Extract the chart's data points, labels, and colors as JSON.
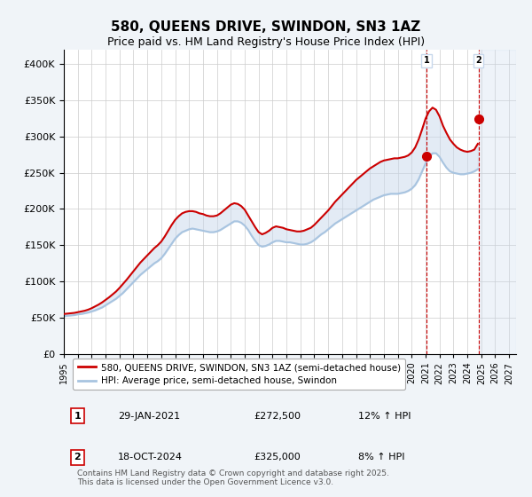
{
  "title": "580, QUEENS DRIVE, SWINDON, SN3 1AZ",
  "subtitle": "Price paid vs. HM Land Registry's House Price Index (HPI)",
  "ylabel_ticks": [
    "£0",
    "£50K",
    "£100K",
    "£150K",
    "£200K",
    "£250K",
    "£300K",
    "£350K",
    "£400K"
  ],
  "ytick_values": [
    0,
    50000,
    100000,
    150000,
    200000,
    250000,
    300000,
    350000,
    400000
  ],
  "ylim": [
    0,
    420000
  ],
  "xlim_start": 1995.0,
  "xlim_end": 2027.5,
  "hpi_color": "#a8c4e0",
  "price_color": "#cc0000",
  "marker1_date": 2021.08,
  "marker1_price": 272500,
  "marker1_label": "1",
  "marker2_date": 2024.8,
  "marker2_price": 325000,
  "marker2_label": "2",
  "annotation1_date": "29-JAN-2021",
  "annotation1_price": "£272,500",
  "annotation1_hpi": "12% ↑ HPI",
  "annotation2_date": "18-OCT-2024",
  "annotation2_price": "£325,000",
  "annotation2_hpi": "8% ↑ HPI",
  "legend_line1": "580, QUEENS DRIVE, SWINDON, SN3 1AZ (semi-detached house)",
  "legend_line2": "HPI: Average price, semi-detached house, Swindon",
  "footnote": "Contains HM Land Registry data © Crown copyright and database right 2025.\nThis data is licensed under the Open Government Licence v3.0.",
  "background_color": "#f0f4f8",
  "plot_bg_color": "#ffffff",
  "grid_color": "#cccccc",
  "xtick_years": [
    1995,
    1996,
    1997,
    1998,
    1999,
    2000,
    2001,
    2002,
    2003,
    2004,
    2005,
    2006,
    2007,
    2008,
    2009,
    2010,
    2011,
    2012,
    2013,
    2014,
    2015,
    2016,
    2017,
    2018,
    2019,
    2020,
    2021,
    2022,
    2023,
    2024,
    2025,
    2026,
    2027
  ],
  "hpi_x": [
    1995.0,
    1995.25,
    1995.5,
    1995.75,
    1996.0,
    1996.25,
    1996.5,
    1996.75,
    1997.0,
    1997.25,
    1997.5,
    1997.75,
    1998.0,
    1998.25,
    1998.5,
    1998.75,
    1999.0,
    1999.25,
    1999.5,
    1999.75,
    2000.0,
    2000.25,
    2000.5,
    2000.75,
    2001.0,
    2001.25,
    2001.5,
    2001.75,
    2002.0,
    2002.25,
    2002.5,
    2002.75,
    2003.0,
    2003.25,
    2003.5,
    2003.75,
    2004.0,
    2004.25,
    2004.5,
    2004.75,
    2005.0,
    2005.25,
    2005.5,
    2005.75,
    2006.0,
    2006.25,
    2006.5,
    2006.75,
    2007.0,
    2007.25,
    2007.5,
    2007.75,
    2008.0,
    2008.25,
    2008.5,
    2008.75,
    2009.0,
    2009.25,
    2009.5,
    2009.75,
    2010.0,
    2010.25,
    2010.5,
    2010.75,
    2011.0,
    2011.25,
    2011.5,
    2011.75,
    2012.0,
    2012.25,
    2012.5,
    2012.75,
    2013.0,
    2013.25,
    2013.5,
    2013.75,
    2014.0,
    2014.25,
    2014.5,
    2014.75,
    2015.0,
    2015.25,
    2015.5,
    2015.75,
    2016.0,
    2016.25,
    2016.5,
    2016.75,
    2017.0,
    2017.25,
    2017.5,
    2017.75,
    2018.0,
    2018.25,
    2018.5,
    2018.75,
    2019.0,
    2019.25,
    2019.5,
    2019.75,
    2020.0,
    2020.25,
    2020.5,
    2020.75,
    2021.0,
    2021.25,
    2021.5,
    2021.75,
    2022.0,
    2022.25,
    2022.5,
    2022.75,
    2023.0,
    2023.25,
    2023.5,
    2023.75,
    2024.0,
    2024.25,
    2024.5,
    2024.75
  ],
  "hpi_y": [
    52000,
    52500,
    53000,
    53500,
    54500,
    55000,
    56000,
    57000,
    58500,
    60000,
    62000,
    64000,
    67000,
    70000,
    73000,
    76000,
    80000,
    84000,
    89000,
    94000,
    99000,
    104000,
    109000,
    113000,
    117000,
    121000,
    125000,
    128000,
    132000,
    138000,
    145000,
    152000,
    159000,
    164000,
    168000,
    170000,
    172000,
    173000,
    172000,
    171000,
    170000,
    169000,
    168000,
    168000,
    169000,
    171000,
    174000,
    177000,
    180000,
    183000,
    183000,
    181000,
    177000,
    171000,
    163000,
    156000,
    150000,
    148000,
    149000,
    151000,
    154000,
    156000,
    156000,
    155000,
    154000,
    154000,
    153000,
    152000,
    151000,
    151000,
    152000,
    154000,
    157000,
    161000,
    165000,
    168000,
    172000,
    176000,
    180000,
    183000,
    186000,
    189000,
    192000,
    195000,
    198000,
    201000,
    204000,
    207000,
    210000,
    213000,
    215000,
    217000,
    219000,
    220000,
    221000,
    221000,
    221000,
    222000,
    223000,
    225000,
    228000,
    233000,
    241000,
    252000,
    263000,
    272000,
    277000,
    277000,
    272000,
    264000,
    257000,
    252000,
    250000,
    249000,
    248000,
    248000,
    249000,
    250000,
    252000,
    255000
  ],
  "price_x": [
    1995.0,
    1995.25,
    1995.5,
    1995.75,
    1996.0,
    1996.25,
    1996.5,
    1996.75,
    1997.0,
    1997.25,
    1997.5,
    1997.75,
    1998.0,
    1998.25,
    1998.5,
    1998.75,
    1999.0,
    1999.25,
    1999.5,
    1999.75,
    2000.0,
    2000.25,
    2000.5,
    2000.75,
    2001.0,
    2001.25,
    2001.5,
    2001.75,
    2002.0,
    2002.25,
    2002.5,
    2002.75,
    2003.0,
    2003.25,
    2003.5,
    2003.75,
    2004.0,
    2004.25,
    2004.5,
    2004.75,
    2005.0,
    2005.25,
    2005.5,
    2005.75,
    2006.0,
    2006.25,
    2006.5,
    2006.75,
    2007.0,
    2007.25,
    2007.5,
    2007.75,
    2008.0,
    2008.25,
    2008.5,
    2008.75,
    2009.0,
    2009.25,
    2009.5,
    2009.75,
    2010.0,
    2010.25,
    2010.5,
    2010.75,
    2011.0,
    2011.25,
    2011.5,
    2011.75,
    2012.0,
    2012.25,
    2012.5,
    2012.75,
    2013.0,
    2013.25,
    2013.5,
    2013.75,
    2014.0,
    2014.25,
    2014.5,
    2014.75,
    2015.0,
    2015.25,
    2015.5,
    2015.75,
    2016.0,
    2016.25,
    2016.5,
    2016.75,
    2017.0,
    2017.25,
    2017.5,
    2017.75,
    2018.0,
    2018.25,
    2018.5,
    2018.75,
    2019.0,
    2019.25,
    2019.5,
    2019.75,
    2020.0,
    2020.25,
    2020.5,
    2020.75,
    2021.0,
    2021.25,
    2021.5,
    2021.75,
    2022.0,
    2022.25,
    2022.5,
    2022.75,
    2023.0,
    2023.25,
    2023.5,
    2023.75,
    2024.0,
    2024.25,
    2024.5,
    2024.75
  ],
  "price_y": [
    55000,
    55500,
    56000,
    56500,
    57500,
    58500,
    59500,
    61000,
    63000,
    65500,
    68000,
    71000,
    74500,
    78000,
    82000,
    86000,
    91000,
    96500,
    102000,
    108000,
    114000,
    120000,
    126000,
    131000,
    136000,
    141000,
    146000,
    150000,
    155000,
    162000,
    170000,
    178000,
    185000,
    190000,
    194000,
    196000,
    197000,
    197000,
    196000,
    194000,
    193000,
    191000,
    190000,
    190000,
    191000,
    194000,
    198000,
    202000,
    206000,
    208000,
    207000,
    204000,
    199000,
    191000,
    183000,
    175000,
    168000,
    165000,
    167000,
    170000,
    174000,
    176000,
    175000,
    174000,
    172000,
    171000,
    170000,
    169000,
    169000,
    170000,
    172000,
    174000,
    178000,
    183000,
    188000,
    193000,
    198000,
    204000,
    210000,
    215000,
    220000,
    225000,
    230000,
    235000,
    240000,
    244000,
    248000,
    252000,
    256000,
    259000,
    262000,
    265000,
    267000,
    268000,
    269000,
    270000,
    270000,
    271000,
    272000,
    274000,
    278000,
    285000,
    296000,
    310000,
    325000,
    335000,
    340000,
    337000,
    328000,
    315000,
    305000,
    296000,
    290000,
    285000,
    282000,
    280000,
    279000,
    280000,
    282000,
    290000
  ]
}
